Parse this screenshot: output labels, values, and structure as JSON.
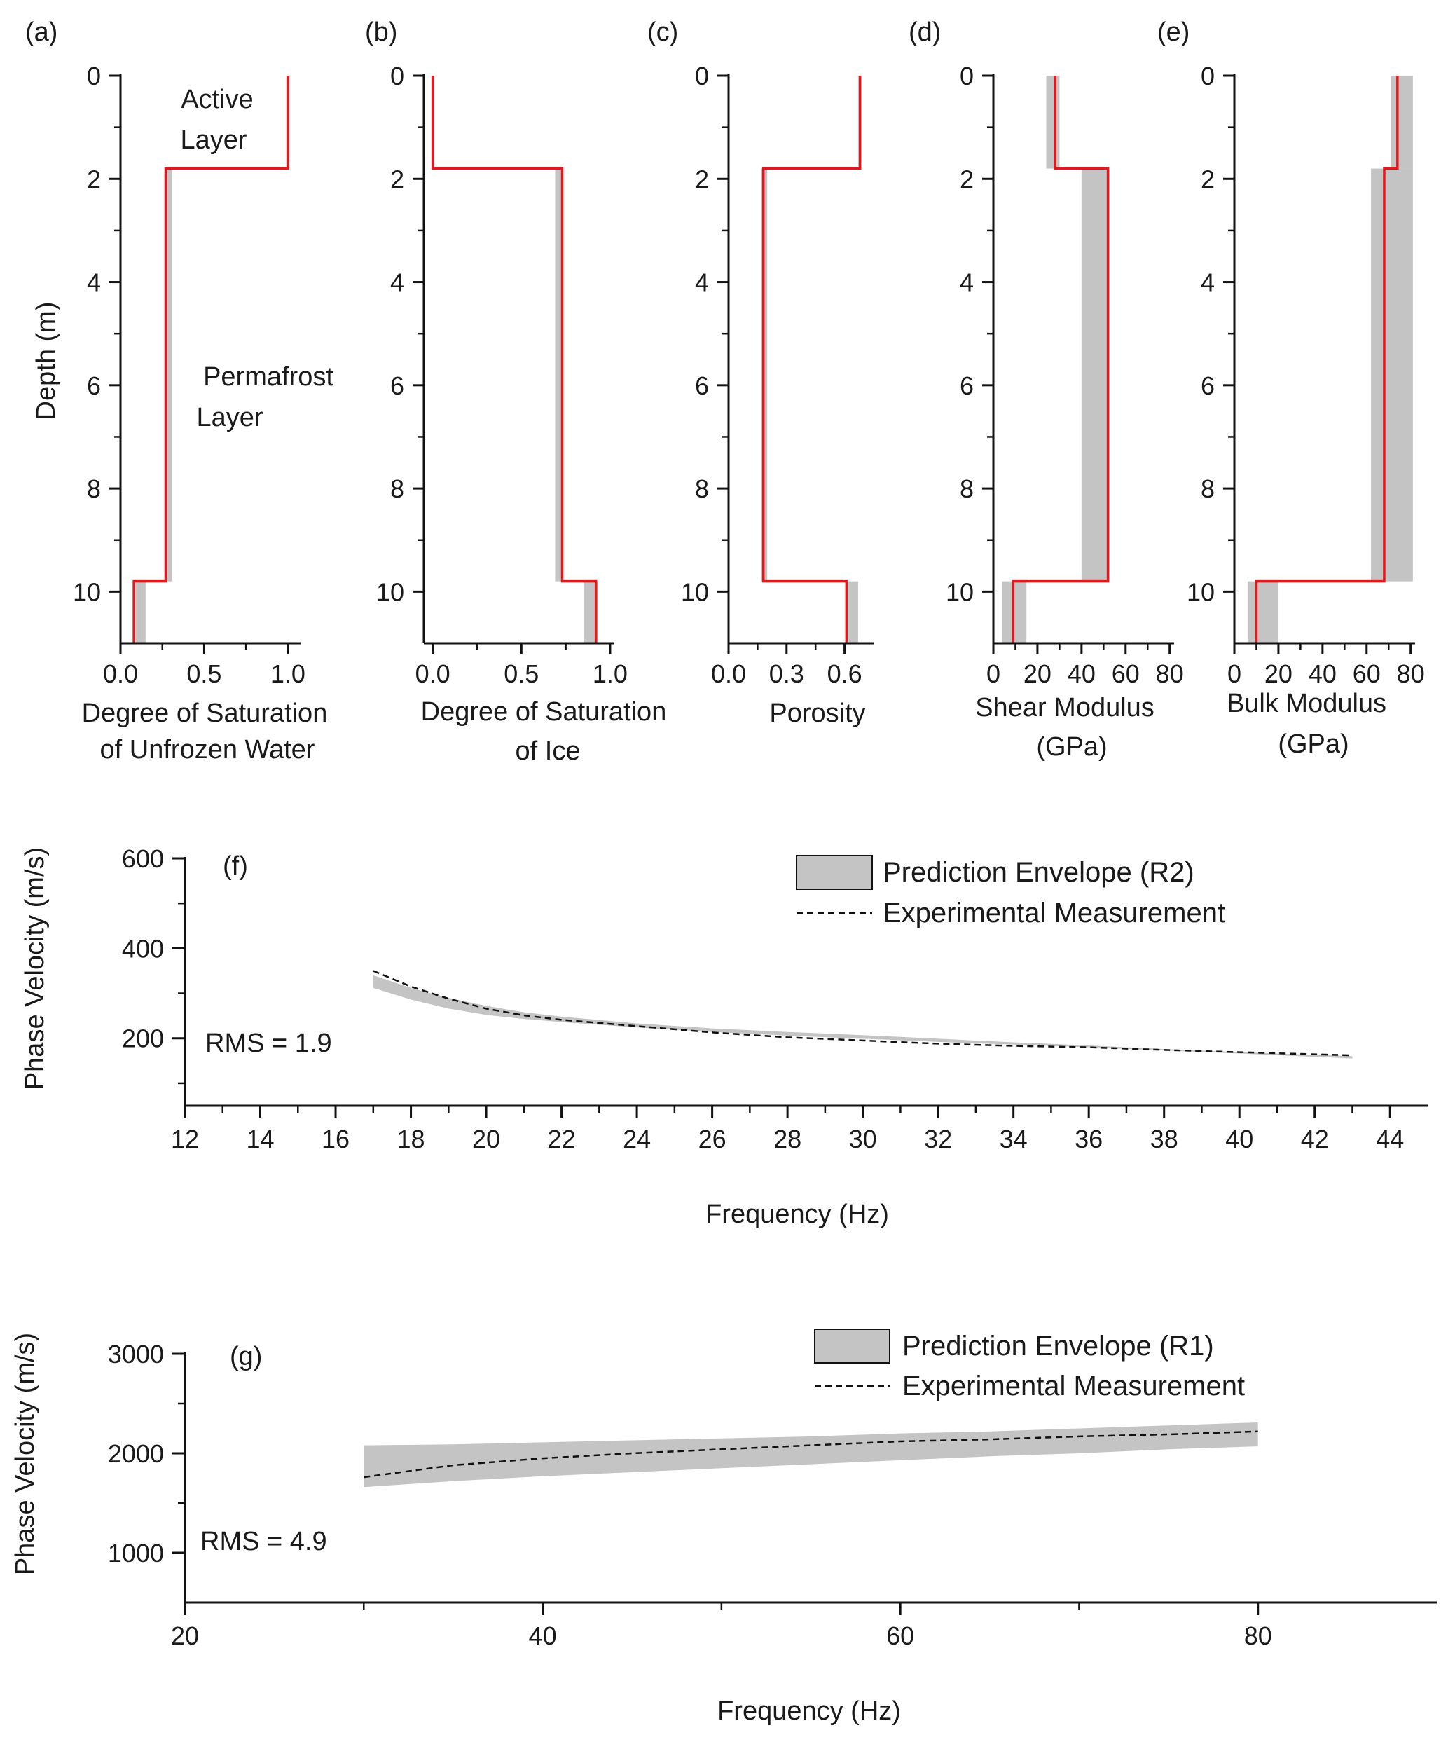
{
  "profile_panels": [
    {
      "panel_label": "(a)",
      "xlabel_lines": [
        "Degree of Saturation",
        "of Unfrozen Water"
      ],
      "ylabel": "Depth (m)",
      "annotations": [
        {
          "lines": [
            "Active",
            "Layer"
          ]
        },
        {
          "lines": [
            "Permafrost",
            "Layer"
          ]
        }
      ]
    },
    {
      "panel_label": "(b)",
      "xlabel_lines": [
        "Degree of Saturation",
        "of Ice"
      ],
      "ylabel": "",
      "annotations": []
    },
    {
      "panel_label": "(c)",
      "xlabel_lines": [
        "Porosity"
      ],
      "ylabel": "",
      "annotations": []
    },
    {
      "panel_label": "(d)",
      "xlabel_lines": [
        "Shear Modulus",
        "(GPa)"
      ],
      "ylabel": "",
      "annotations": []
    },
    {
      "panel_label": "(e)",
      "xlabel_lines": [
        "Bulk Modulus",
        "(GPa)"
      ],
      "ylabel": "",
      "annotations": []
    }
  ],
  "dispersion_panels": [
    {
      "panel_label": "(f)",
      "xlabel": "Frequency (Hz)",
      "ylabel": "Phase Velocity (m/s)",
      "rms_text": "RMS = 1.9",
      "legend": {
        "envelope": "Prediction Envelope (R2)",
        "measurement": "Experimental Measurement"
      }
    },
    {
      "panel_label": "(g)",
      "xlabel": "Frequency (Hz)",
      "ylabel": "Phase Velocity (m/s)",
      "rms_text": "RMS = 4.9",
      "legend": {
        "envelope": "Prediction Envelope (R1)",
        "measurement": "Experimental Measurement"
      }
    }
  ],
  "chart_data": [
    {
      "type": "line",
      "id": "a",
      "xlim": [
        0,
        1.08
      ],
      "ylim": [
        0,
        11
      ],
      "y_inverted": true,
      "xticks": [
        0,
        0.5,
        1.0
      ],
      "xtick_labels": [
        "0.0",
        "0.5",
        "1.0"
      ],
      "yticks": [
        0,
        2,
        4,
        6,
        8,
        10
      ],
      "ytick_labels": [
        "0",
        "2",
        "4",
        "6",
        "8",
        "10"
      ],
      "layer_boundaries_m": [
        1.8,
        9.8
      ],
      "envelope": [
        [
          0.99,
          1.01
        ],
        [
          0.27,
          0.31
        ],
        [
          0.09,
          0.15
        ]
      ],
      "profile": [
        1.0,
        0.27,
        0.08
      ],
      "colors": {
        "profile": "#e8161b",
        "envelope": "#c4c4c4"
      }
    },
    {
      "type": "line",
      "id": "b",
      "xlim": [
        -0.05,
        1.02
      ],
      "ylim": [
        0,
        11
      ],
      "y_inverted": true,
      "xticks": [
        0,
        0.5,
        1.0
      ],
      "xtick_labels": [
        "0.0",
        "0.5",
        "1.0"
      ],
      "yticks": [
        0,
        2,
        4,
        6,
        8,
        10
      ],
      "ytick_labels": [
        "0",
        "2",
        "4",
        "6",
        "8",
        "10"
      ],
      "layer_boundaries_m": [
        1.8,
        9.8
      ],
      "envelope": [
        [
          0.0,
          0.01
        ],
        [
          0.69,
          0.73
        ],
        [
          0.85,
          0.93
        ]
      ],
      "profile": [
        0.0,
        0.73,
        0.92
      ],
      "colors": {
        "profile": "#e8161b",
        "envelope": "#c4c4c4"
      }
    },
    {
      "type": "line",
      "id": "c",
      "xlim": [
        0,
        0.75
      ],
      "ylim": [
        0,
        11
      ],
      "y_inverted": true,
      "xticks": [
        0,
        0.3,
        0.6
      ],
      "xtick_labels": [
        "0.0",
        "0.3",
        "0.6"
      ],
      "yticks": [
        0,
        2,
        4,
        6,
        8,
        10
      ],
      "ytick_labels": [
        "0",
        "2",
        "4",
        "6",
        "8",
        "10"
      ],
      "layer_boundaries_m": [
        1.8,
        9.8
      ],
      "envelope": [
        [
          0.67,
          0.68
        ],
        [
          0.17,
          0.2
        ],
        [
          0.62,
          0.67
        ]
      ],
      "profile": [
        0.68,
        0.18,
        0.61
      ],
      "colors": {
        "profile": "#e8161b",
        "envelope": "#c4c4c4"
      }
    },
    {
      "type": "line",
      "id": "d",
      "xlim": [
        0,
        82
      ],
      "ylim": [
        0,
        11
      ],
      "y_inverted": true,
      "xticks": [
        0,
        20,
        40,
        60,
        80
      ],
      "xtick_labels": [
        "0",
        "20",
        "40",
        "60",
        "80"
      ],
      "yticks": [
        0,
        2,
        4,
        6,
        8,
        10
      ],
      "ytick_labels": [
        "0",
        "2",
        "4",
        "6",
        "8",
        "10"
      ],
      "layer_boundaries_m": [
        1.8,
        9.8
      ],
      "envelope": [
        [
          24,
          30
        ],
        [
          40,
          52
        ],
        [
          4,
          15
        ]
      ],
      "profile": [
        28,
        52,
        9
      ],
      "colors": {
        "profile": "#e8161b",
        "envelope": "#c4c4c4"
      }
    },
    {
      "type": "line",
      "id": "e",
      "xlim": [
        0,
        82
      ],
      "ylim": [
        0,
        11
      ],
      "y_inverted": true,
      "xticks": [
        0,
        20,
        40,
        60,
        80
      ],
      "xtick_labels": [
        "0",
        "20",
        "40",
        "60",
        "80"
      ],
      "yticks": [
        0,
        2,
        4,
        6,
        8,
        10
      ],
      "ytick_labels": [
        "0",
        "2",
        "4",
        "6",
        "8",
        "10"
      ],
      "layer_boundaries_m": [
        1.8,
        9.8
      ],
      "envelope": [
        [
          71,
          81
        ],
        [
          62,
          81
        ],
        [
          6,
          20
        ]
      ],
      "profile": [
        74,
        68,
        10
      ],
      "colors": {
        "profile": "#e8161b",
        "envelope": "#c4c4c4"
      }
    },
    {
      "type": "area",
      "id": "f",
      "xlim": [
        12,
        45
      ],
      "ylim": [
        50,
        600
      ],
      "xticks": [
        12,
        14,
        16,
        18,
        20,
        22,
        24,
        26,
        28,
        30,
        32,
        34,
        36,
        38,
        40,
        42,
        44
      ],
      "xtick_labels": [
        "12",
        "14",
        "16",
        "18",
        "20",
        "22",
        "24",
        "26",
        "28",
        "30",
        "32",
        "34",
        "36",
        "38",
        "40",
        "42",
        "44"
      ],
      "yticks": [
        200,
        400,
        600
      ],
      "ytick_labels": [
        "200",
        "400",
        "600"
      ],
      "x": [
        17,
        18,
        19,
        20,
        21,
        22,
        24,
        26,
        28,
        30,
        32,
        34,
        36,
        38,
        40,
        43
      ],
      "envelope_low": [
        312,
        286,
        266,
        252,
        243,
        236,
        224,
        214,
        206,
        199,
        192,
        186,
        180,
        173,
        166,
        155
      ],
      "envelope_high": [
        340,
        312,
        290,
        272,
        258,
        248,
        233,
        222,
        214,
        207,
        199,
        191,
        184,
        176,
        169,
        160
      ],
      "measurement": [
        350,
        315,
        288,
        266,
        251,
        241,
        227,
        213,
        202,
        195,
        188,
        183,
        180,
        174,
        169,
        162
      ],
      "colors": {
        "envelope": "#c4c4c4",
        "measurement": "#111111"
      }
    },
    {
      "type": "area",
      "id": "g",
      "xlim": [
        20,
        90
      ],
      "ylim": [
        500,
        3000
      ],
      "xticks": [
        20,
        40,
        60,
        80
      ],
      "xtick_labels": [
        "20",
        "40",
        "60",
        "80"
      ],
      "yticks": [
        1000,
        2000,
        3000
      ],
      "ytick_labels": [
        "1000",
        "2000",
        "3000"
      ],
      "x": [
        30,
        35,
        40,
        45,
        50,
        55,
        60,
        65,
        70,
        75,
        80
      ],
      "envelope_low": [
        1660,
        1720,
        1770,
        1810,
        1850,
        1890,
        1930,
        1970,
        2000,
        2040,
        2070
      ],
      "envelope_high": [
        2080,
        2090,
        2110,
        2130,
        2150,
        2170,
        2200,
        2220,
        2250,
        2280,
        2310
      ],
      "measurement": [
        1760,
        1880,
        1950,
        2000,
        2040,
        2080,
        2120,
        2140,
        2170,
        2190,
        2220
      ],
      "colors": {
        "envelope": "#c4c4c4",
        "measurement": "#111111"
      }
    }
  ]
}
